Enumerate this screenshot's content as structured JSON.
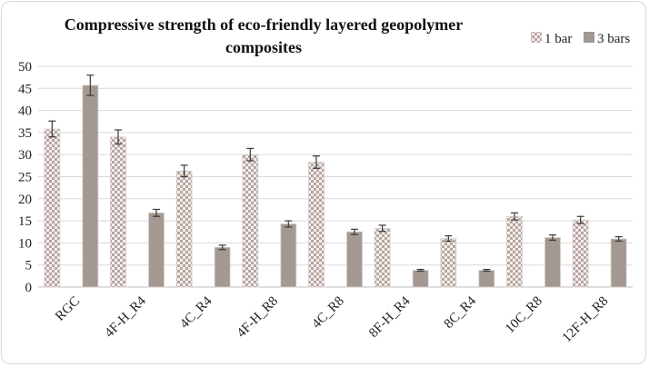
{
  "chart_data": {
    "type": "bar",
    "title": "Compressive strength of eco-friendly layered geopolymer composites",
    "title_lines": [
      "Compressive strength of eco-friendly layered geopolymer",
      "composites"
    ],
    "categories": [
      "RGC",
      "4F-H_R4",
      "4C_R4",
      "4F-H_R8",
      "4C_R8",
      "8F-H_R4",
      "8C_R4",
      "10C_R8",
      "12F-H_R8"
    ],
    "series": [
      {
        "name": "1 bar",
        "pattern": "checker",
        "color": "#c9b8b2",
        "values": [
          35.8,
          34.0,
          26.3,
          30.0,
          28.3,
          13.3,
          11.0,
          16.0,
          15.2
        ],
        "errors": [
          1.8,
          1.6,
          1.3,
          1.4,
          1.4,
          0.7,
          0.6,
          0.8,
          0.8
        ]
      },
      {
        "name": "3 bars",
        "pattern": "solid",
        "color": "#a39892",
        "values": [
          45.7,
          16.8,
          9.0,
          14.3,
          12.5,
          3.8,
          3.8,
          11.2,
          10.9
        ],
        "errors": [
          2.3,
          0.8,
          0.5,
          0.7,
          0.6,
          0.2,
          0.2,
          0.6,
          0.5
        ]
      }
    ],
    "ylim": [
      0,
      50
    ],
    "yticks": [
      "0",
      "5",
      "10",
      "15",
      "20",
      "25",
      "30",
      "35",
      "40",
      "45",
      "50"
    ],
    "xlabel": "",
    "ylabel": "",
    "grid": true,
    "legend_position": "top-right"
  }
}
